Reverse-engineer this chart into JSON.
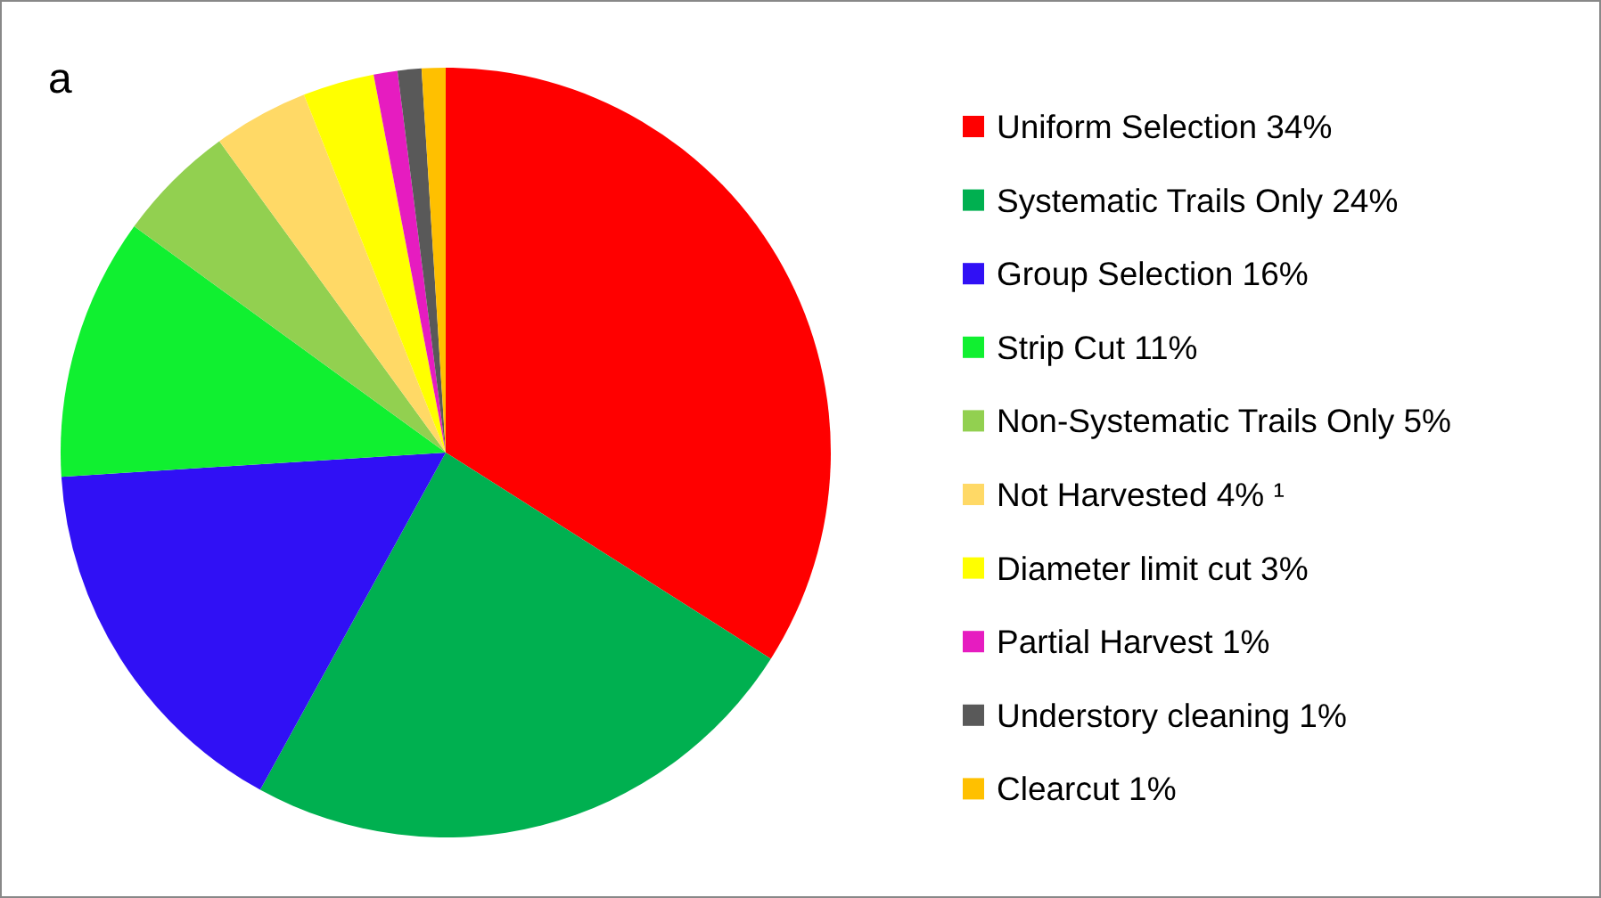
{
  "chart_data": {
    "type": "pie",
    "annotations": [
      "a"
    ],
    "categories": [
      "Uniform Selection 34%",
      "Systematic Trails Only 24%",
      "Group Selection 16%",
      "Strip Cut 11%",
      "Non-Systematic Trails Only 5%",
      "Not Harvested 4% ¹",
      "Diameter limit cut 3%",
      "Partial Harvest 1%",
      "Understory cleaning 1%",
      "Clearcut 1%"
    ],
    "values": [
      34,
      24,
      16,
      11,
      5,
      4,
      3,
      1,
      1,
      1
    ],
    "colors": [
      "#ff0000",
      "#00b050",
      "#3010f5",
      "#10f030",
      "#92d050",
      "#ffd966",
      "#ffff00",
      "#e61cc0",
      "#595959",
      "#ffc000"
    ],
    "legend": "right"
  }
}
